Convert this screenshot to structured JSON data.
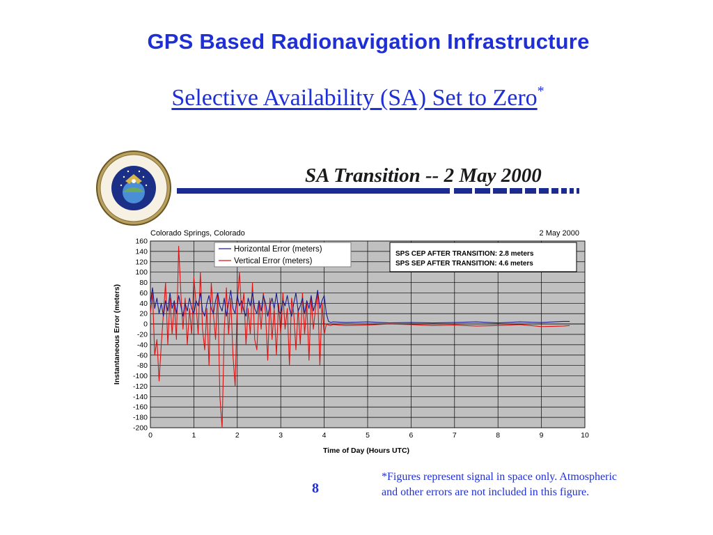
{
  "header": {
    "title": "GPS Based Radionavigation Infrastructure",
    "subtitle": "Selective Availability (SA) Set to Zero",
    "subtitle_mark": "*"
  },
  "figure": {
    "title": "SA Transition -- 2 May 2000",
    "seal_icon": "us-space-command-seal"
  },
  "chart_data": {
    "type": "line",
    "location_label": "Colorado Springs, Colorado",
    "date_label": "2 May 2000",
    "xlabel": "Time of Day (Hours UTC)",
    "ylabel": "Instantaneous Error (meters)",
    "xlim": [
      0,
      10
    ],
    "ylim": [
      -200,
      160
    ],
    "x_ticks": [
      0,
      1,
      2,
      3,
      4,
      5,
      6,
      7,
      8,
      9,
      10
    ],
    "y_ticks": [
      160,
      140,
      120,
      100,
      80,
      60,
      40,
      20,
      0,
      -20,
      -40,
      -60,
      -80,
      -100,
      -120,
      -140,
      -160,
      -180,
      -200
    ],
    "grid": true,
    "plot_background": "#c0c0c0",
    "legend_position": "top-left",
    "annotation_lines": [
      "SPS CEP AFTER TRANSITION:  2.8 meters",
      "SPS SEP AFTER TRANSITION:  4.6 meters"
    ],
    "series": [
      {
        "name": "Horizontal Error (meters)",
        "color": "#1a1a8c",
        "x": [
          0,
          0.05,
          0.1,
          0.15,
          0.2,
          0.25,
          0.3,
          0.35,
          0.4,
          0.45,
          0.5,
          0.55,
          0.6,
          0.65,
          0.7,
          0.75,
          0.8,
          0.85,
          0.9,
          0.95,
          1.0,
          1.05,
          1.1,
          1.15,
          1.2,
          1.25,
          1.3,
          1.35,
          1.4,
          1.45,
          1.5,
          1.55,
          1.6,
          1.65,
          1.7,
          1.75,
          1.8,
          1.85,
          1.9,
          1.95,
          2.0,
          2.05,
          2.1,
          2.15,
          2.2,
          2.25,
          2.3,
          2.35,
          2.4,
          2.45,
          2.5,
          2.55,
          2.6,
          2.65,
          2.7,
          2.75,
          2.8,
          2.85,
          2.9,
          2.95,
          3.0,
          3.05,
          3.1,
          3.15,
          3.2,
          3.25,
          3.3,
          3.35,
          3.4,
          3.45,
          3.5,
          3.55,
          3.6,
          3.65,
          3.7,
          3.75,
          3.8,
          3.85,
          3.9,
          3.95,
          4.0,
          4.05,
          4.1,
          4.15,
          4.2,
          4.5,
          5.0,
          5.5,
          6.0,
          6.5,
          7.0,
          7.5,
          8.0,
          8.5,
          9.0,
          9.5,
          9.65
        ],
        "values": [
          40,
          70,
          30,
          50,
          20,
          40,
          15,
          45,
          25,
          60,
          30,
          45,
          20,
          55,
          35,
          15,
          40,
          25,
          50,
          30,
          20,
          45,
          35,
          60,
          25,
          15,
          40,
          55,
          30,
          20,
          45,
          60,
          35,
          25,
          50,
          15,
          40,
          65,
          30,
          20,
          55,
          35,
          45,
          25,
          15,
          50,
          35,
          60,
          30,
          20,
          45,
          25,
          55,
          40,
          15,
          35,
          50,
          30,
          60,
          25,
          20,
          45,
          35,
          55,
          30,
          15,
          40,
          60,
          25,
          35,
          50,
          20,
          45,
          30,
          55,
          25,
          40,
          65,
          30,
          45,
          55,
          20,
          5,
          3,
          4,
          3,
          4,
          2,
          3,
          2,
          3,
          4,
          2,
          4,
          3,
          5,
          5
        ]
      },
      {
        "name": "Vertical Error (meters)",
        "color": "#e01010",
        "x": [
          0,
          0.05,
          0.1,
          0.15,
          0.2,
          0.25,
          0.3,
          0.35,
          0.4,
          0.45,
          0.5,
          0.55,
          0.6,
          0.65,
          0.7,
          0.75,
          0.8,
          0.85,
          0.9,
          0.95,
          1.0,
          1.05,
          1.1,
          1.15,
          1.2,
          1.25,
          1.3,
          1.35,
          1.4,
          1.45,
          1.5,
          1.55,
          1.6,
          1.65,
          1.7,
          1.75,
          1.8,
          1.85,
          1.9,
          1.95,
          2.0,
          2.05,
          2.1,
          2.15,
          2.2,
          2.25,
          2.3,
          2.35,
          2.4,
          2.45,
          2.5,
          2.55,
          2.6,
          2.65,
          2.7,
          2.75,
          2.8,
          2.85,
          2.9,
          2.95,
          3.0,
          3.05,
          3.1,
          3.15,
          3.2,
          3.25,
          3.3,
          3.35,
          3.4,
          3.45,
          3.5,
          3.55,
          3.6,
          3.65,
          3.7,
          3.75,
          3.8,
          3.85,
          3.9,
          3.95,
          4.0,
          4.05,
          4.1,
          4.15,
          4.2,
          4.5,
          5.0,
          5.5,
          6.0,
          6.5,
          7.0,
          7.5,
          8.0,
          8.5,
          9.0,
          9.5,
          9.65
        ],
        "values": [
          20,
          60,
          -60,
          -30,
          -110,
          -40,
          20,
          80,
          -40,
          50,
          -20,
          40,
          -30,
          150,
          60,
          -10,
          50,
          -40,
          30,
          -20,
          90,
          40,
          -20,
          100,
          -10,
          -50,
          30,
          -80,
          80,
          20,
          -30,
          60,
          -140,
          -200,
          -10,
          70,
          -20,
          50,
          -60,
          -120,
          40,
          100,
          20,
          60,
          -40,
          30,
          -20,
          80,
          -30,
          -50,
          40,
          -10,
          60,
          20,
          -70,
          50,
          -30,
          30,
          -60,
          40,
          -20,
          60,
          -10,
          30,
          -80,
          50,
          20,
          -50,
          30,
          -40,
          60,
          -20,
          40,
          -70,
          50,
          -10,
          30,
          60,
          -80,
          40,
          -20,
          0,
          -2,
          -3,
          -1,
          -3,
          -2,
          0,
          -1,
          -3,
          -2,
          -4,
          -3,
          -1,
          -5,
          -4,
          -3
        ]
      }
    ]
  },
  "footnote": {
    "line1": "*Figures represent signal in space only.  Atmospheric",
    "line2": "and other errors are not included in this figure."
  },
  "page": {
    "number": "8"
  }
}
